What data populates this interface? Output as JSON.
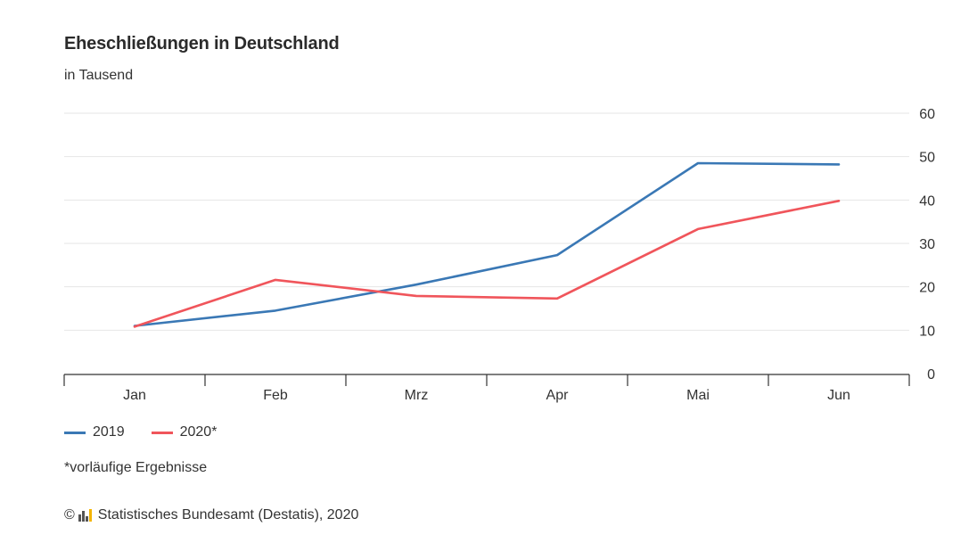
{
  "header": {
    "title": "Eheschließungen in Deutschland",
    "subtitle": "in Tausend"
  },
  "legend": {
    "items": [
      {
        "label": "2019",
        "color": "#3a78b5"
      },
      {
        "label": "2020*",
        "color": "#f0555b"
      }
    ]
  },
  "footnote": "*vorläufige Ergebnisse",
  "source": {
    "copyright": "©",
    "text": "Statistisches Bundesamt (Destatis), 2020",
    "logo_icon": "destatis-logo-icon"
  },
  "chart_data": {
    "type": "line",
    "title": "Eheschließungen in Deutschland",
    "subtitle": "in Tausend",
    "categories": [
      "Jan",
      "Feb",
      "Mrz",
      "Apr",
      "Mai",
      "Jun"
    ],
    "series": [
      {
        "name": "2019",
        "color": "#3a78b5",
        "values": [
          11.0,
          14.5,
          20.5,
          27.3,
          48.5,
          48.2
        ]
      },
      {
        "name": "2020*",
        "color": "#f0555b",
        "values": [
          10.8,
          21.6,
          17.9,
          17.3,
          33.3,
          39.8
        ]
      }
    ],
    "ylim": [
      0,
      60
    ],
    "yticks": [
      0,
      10,
      20,
      30,
      40,
      50,
      60
    ],
    "y_axis_position": "right",
    "grid": true,
    "legend_position": "bottom-left"
  }
}
